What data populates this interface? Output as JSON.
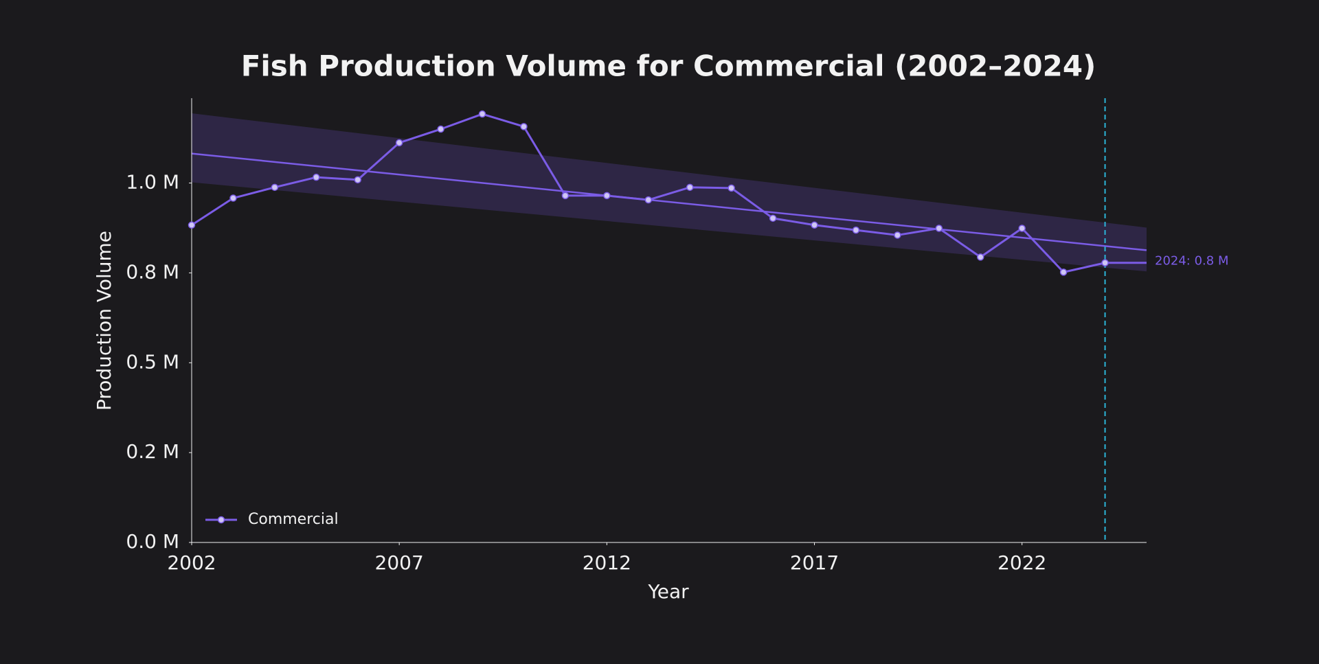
{
  "chart_data": {
    "type": "line",
    "title": "Fish Production Volume for Commercial (2002–2024)",
    "x_label": "Year",
    "y_label": "Production Volume",
    "x": [
      2002,
      2003,
      2004,
      2005,
      2006,
      2007,
      2008,
      2009,
      2010,
      2011,
      2012,
      2013,
      2014,
      2015,
      2016,
      2017,
      2018,
      2019,
      2020,
      2021,
      2022,
      2023,
      2024
    ],
    "series": [
      {
        "name": "Commercial",
        "color": "#7b5ce6",
        "values": [
          883000,
          958000,
          988000,
          1016000,
          1009000,
          1112000,
          1150000,
          1192000,
          1157000,
          965000,
          965000,
          953000,
          988000,
          986000,
          902000,
          883000,
          869000,
          855000,
          874000,
          794000,
          874000,
          752000,
          778000
        ]
      }
    ],
    "trend": {
      "x": [
        2002,
        2025
      ],
      "values": [
        1082000,
        813000
      ],
      "upper": [
        1194000,
        876000
      ],
      "lower": [
        1002000,
        754000
      ],
      "color": "#7b5ce6"
    },
    "reference_x": 2024,
    "reference_color": "#2bb5d9",
    "annotation": "2024: 0.8 M",
    "xlim": [
      2002,
      2025
    ],
    "xticks": [
      2002,
      2007,
      2012,
      2017,
      2022
    ],
    "ylim": [
      0,
      1236000
    ],
    "yticks": [
      {
        "value": 0,
        "label": "0.0 M"
      },
      {
        "value": 250000,
        "label": "0.2 M"
      },
      {
        "value": 500000,
        "label": "0.5 M"
      },
      {
        "value": 750000,
        "label": "0.8 M"
      },
      {
        "value": 1000000,
        "label": "1.0 M"
      }
    ],
    "legend": "lower left",
    "grid": false
  }
}
